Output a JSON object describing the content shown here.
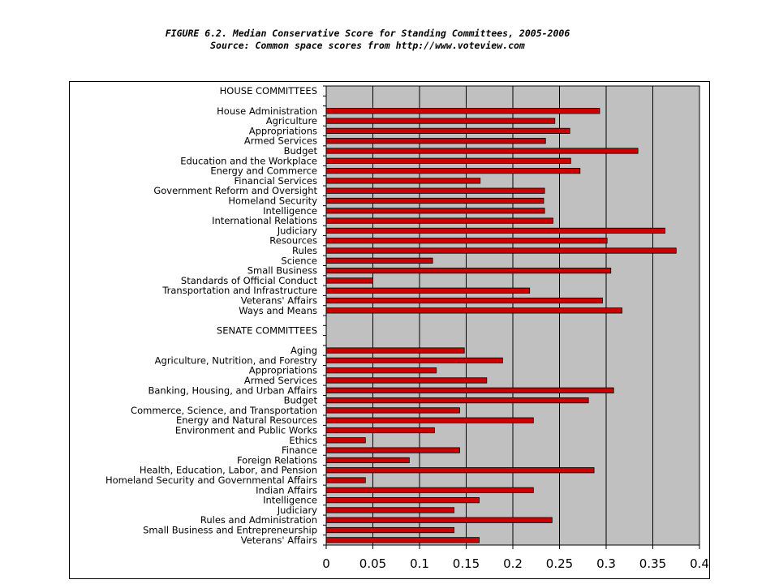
{
  "title": "FIGURE 6.2.  Median Conservative Score for Standing Committees, 2005-2006",
  "subtitle": "Source:  Common space scores from http://www.voteview.com",
  "colors": {
    "bar": "#cc0000",
    "plot_bg": "#c0c0c0"
  },
  "chart_data": {
    "type": "bar",
    "orientation": "horizontal",
    "title": "FIGURE 6.2.  Median Conservative Score for Standing Committees, 2005-2006",
    "subtitle": "Source:  Common space scores from http://www.voteview.com",
    "xlim": [
      0,
      0.4
    ],
    "x_ticks": [
      "0",
      "0.05",
      "0.1",
      "0.15",
      "0.2",
      "0.25",
      "0.3",
      "0.35",
      "0.4"
    ],
    "grid": "vertical",
    "categories": [
      "HOUSE COMMITTEES",
      "",
      "House Administration",
      "Agriculture",
      "Appropriations",
      "Armed Services",
      "Budget",
      "Education and the Workplace",
      "Energy and Commerce",
      "Financial Services",
      "Government Reform and Oversight",
      "Homeland Security",
      "Intelligence",
      "International Relations",
      "Judiciary",
      "Resources",
      "Rules",
      "Science",
      "Small Business",
      "Standards of Official Conduct",
      "Transportation and Infrastructure",
      "Veterans' Affairs",
      "Ways and Means",
      "",
      "SENATE COMMITTEES",
      "",
      "Aging",
      "Agriculture, Nutrition, and Forestry",
      "Appropriations",
      "Armed Services",
      "Banking, Housing, and Urban Affairs",
      "Budget",
      "Commerce, Science, and Transportation",
      "Energy and Natural Resources",
      "Environment and Public Works",
      "Ethics",
      "Finance",
      "Foreign Relations",
      "Health, Education, Labor, and Pension",
      "Homeland Security and Governmental Affairs",
      "Indian Affairs",
      "Intelligence",
      "Judiciary",
      "Rules and Administration",
      "Small Business and Entrepreneurship",
      "Veterans' Affairs"
    ],
    "values": [
      null,
      null,
      0.293,
      0.245,
      0.261,
      0.235,
      0.334,
      0.262,
      0.272,
      0.165,
      0.234,
      0.233,
      0.234,
      0.243,
      0.363,
      0.301,
      0.375,
      0.114,
      0.305,
      0.05,
      0.218,
      0.296,
      0.317,
      null,
      null,
      null,
      0.148,
      0.189,
      0.118,
      0.172,
      0.308,
      0.281,
      0.143,
      0.222,
      0.116,
      0.042,
      0.143,
      0.089,
      0.287,
      0.042,
      0.222,
      0.164,
      0.137,
      0.242,
      0.137,
      0.164
    ]
  }
}
